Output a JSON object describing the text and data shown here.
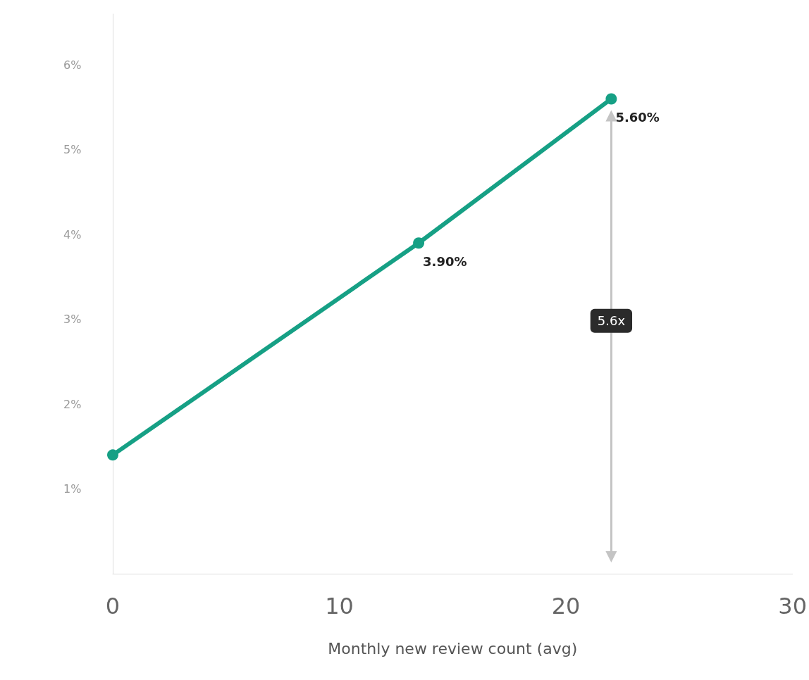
{
  "chart_data": {
    "type": "line",
    "xlabel": "Monthly new review count (avg)",
    "x": [
      0,
      13.5,
      22
    ],
    "series": [
      {
        "color": "#16a085",
        "values": [
          1.4,
          3.9,
          5.6
        ],
        "value_labels": [
          null,
          "3.90%",
          "5.60%"
        ]
      }
    ],
    "xlim": [
      0,
      30
    ],
    "xticks": [
      0,
      10,
      20,
      30
    ],
    "ylim": [
      0,
      6.6
    ],
    "yticks": [
      {
        "value": 1,
        "label": "1%"
      },
      {
        "value": 2,
        "label": "2%"
      },
      {
        "value": 3,
        "label": "3%"
      },
      {
        "value": 4,
        "label": "4%"
      },
      {
        "value": 5,
        "label": "5%"
      },
      {
        "value": 6,
        "label": "6%"
      }
    ],
    "annotations": [
      "5.6x"
    ],
    "grid": false,
    "marker": "circle",
    "line_style": "solid"
  }
}
